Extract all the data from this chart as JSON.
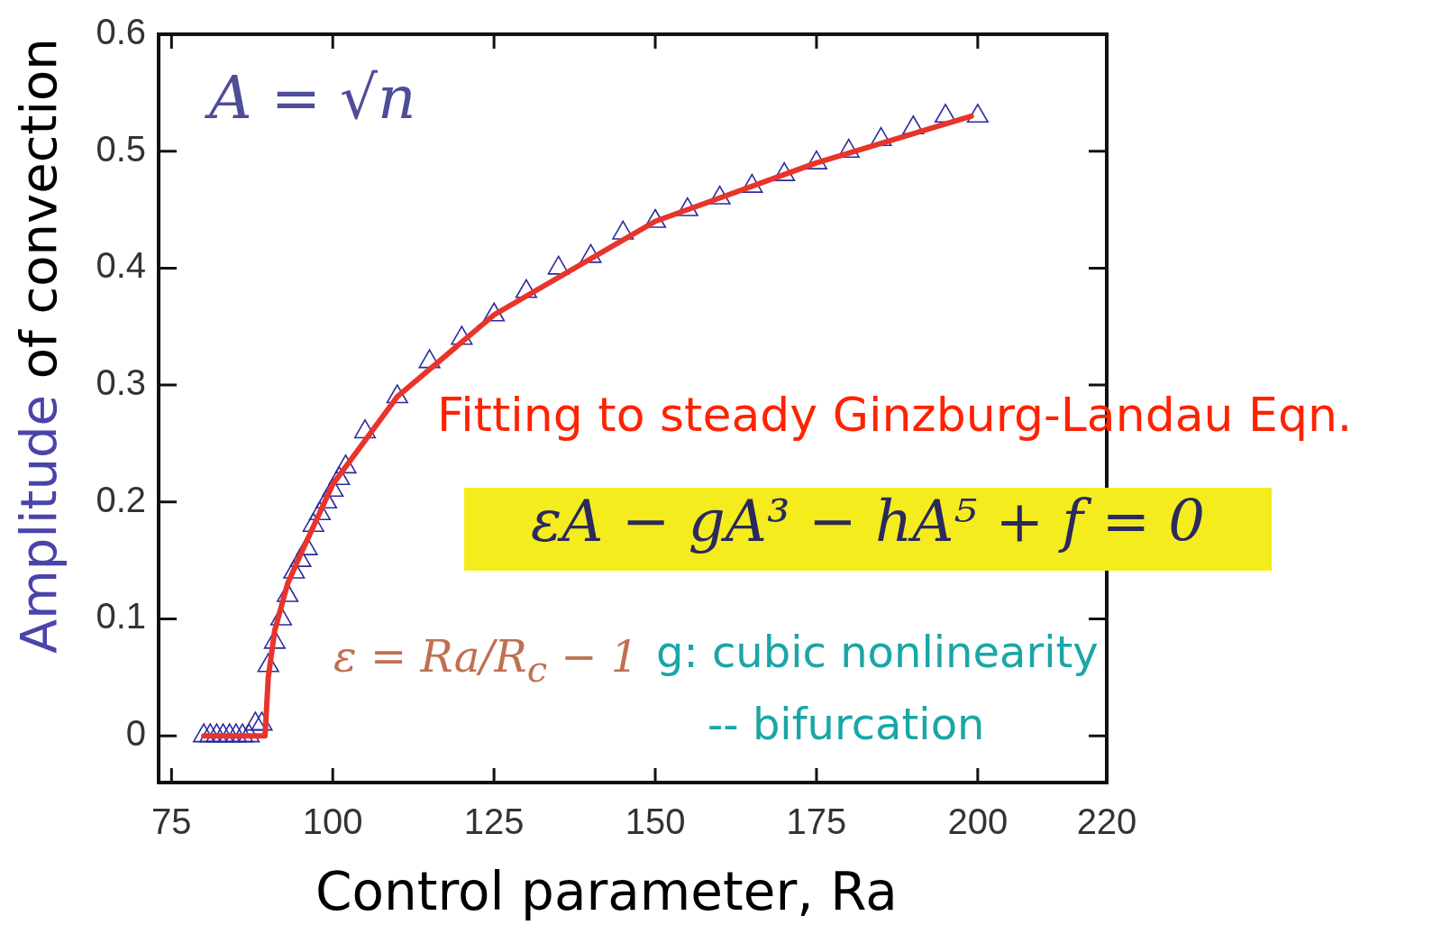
{
  "chart_data": {
    "type": "scatter",
    "xlabel": "Control parameter, Ra",
    "ylabel": "Amplitude of convection",
    "xlim": [
      73,
      220
    ],
    "xticks": [
      75,
      100,
      125,
      150,
      175,
      200,
      220
    ],
    "ylim": [
      -0.04,
      0.6
    ],
    "yticks": [
      0,
      0.1,
      0.2,
      0.3,
      0.4,
      0.5,
      0.6
    ],
    "series": [
      {
        "type": "scatter",
        "color": "#2b2b9e",
        "marker": "triangle",
        "x": [
          80,
          81,
          82,
          83,
          84,
          85,
          86,
          87,
          88,
          89,
          90,
          91,
          92,
          93,
          94,
          95,
          96,
          97,
          98,
          99,
          100,
          101,
          102,
          105,
          110,
          115,
          120,
          125,
          130,
          135,
          140,
          145,
          150,
          155,
          160,
          165,
          170,
          175,
          180,
          185,
          190,
          195,
          200
        ],
        "values": [
          0,
          0,
          0,
          0,
          0,
          0,
          0,
          0,
          0.01,
          0.01,
          0.06,
          0.08,
          0.1,
          0.12,
          0.14,
          0.15,
          0.16,
          0.18,
          0.19,
          0.2,
          0.21,
          0.22,
          0.23,
          0.26,
          0.29,
          0.32,
          0.34,
          0.36,
          0.38,
          0.4,
          0.41,
          0.43,
          0.44,
          0.45,
          0.46,
          0.47,
          0.48,
          0.49,
          0.5,
          0.51,
          0.52,
          0.53,
          0.53
        ]
      },
      {
        "type": "line",
        "color": "#e8342a",
        "marker": "none",
        "x": [
          80,
          89.5,
          90,
          91,
          93,
          95,
          100,
          110,
          125,
          150,
          175,
          199
        ],
        "values": [
          0,
          0,
          0.05,
          0.09,
          0.13,
          0.155,
          0.215,
          0.29,
          0.36,
          0.44,
          0.49,
          0.53
        ]
      }
    ],
    "annotations": [
      "A = √n",
      "Fitting to steady Ginzburg-Landau Eqn.",
      "εA − gA³ − hA⁵ + f = 0",
      "ε = Ra/R$_{c}$ − 1",
      "g: cubic nonlinearity",
      "-- bifurcation"
    ]
  }
}
